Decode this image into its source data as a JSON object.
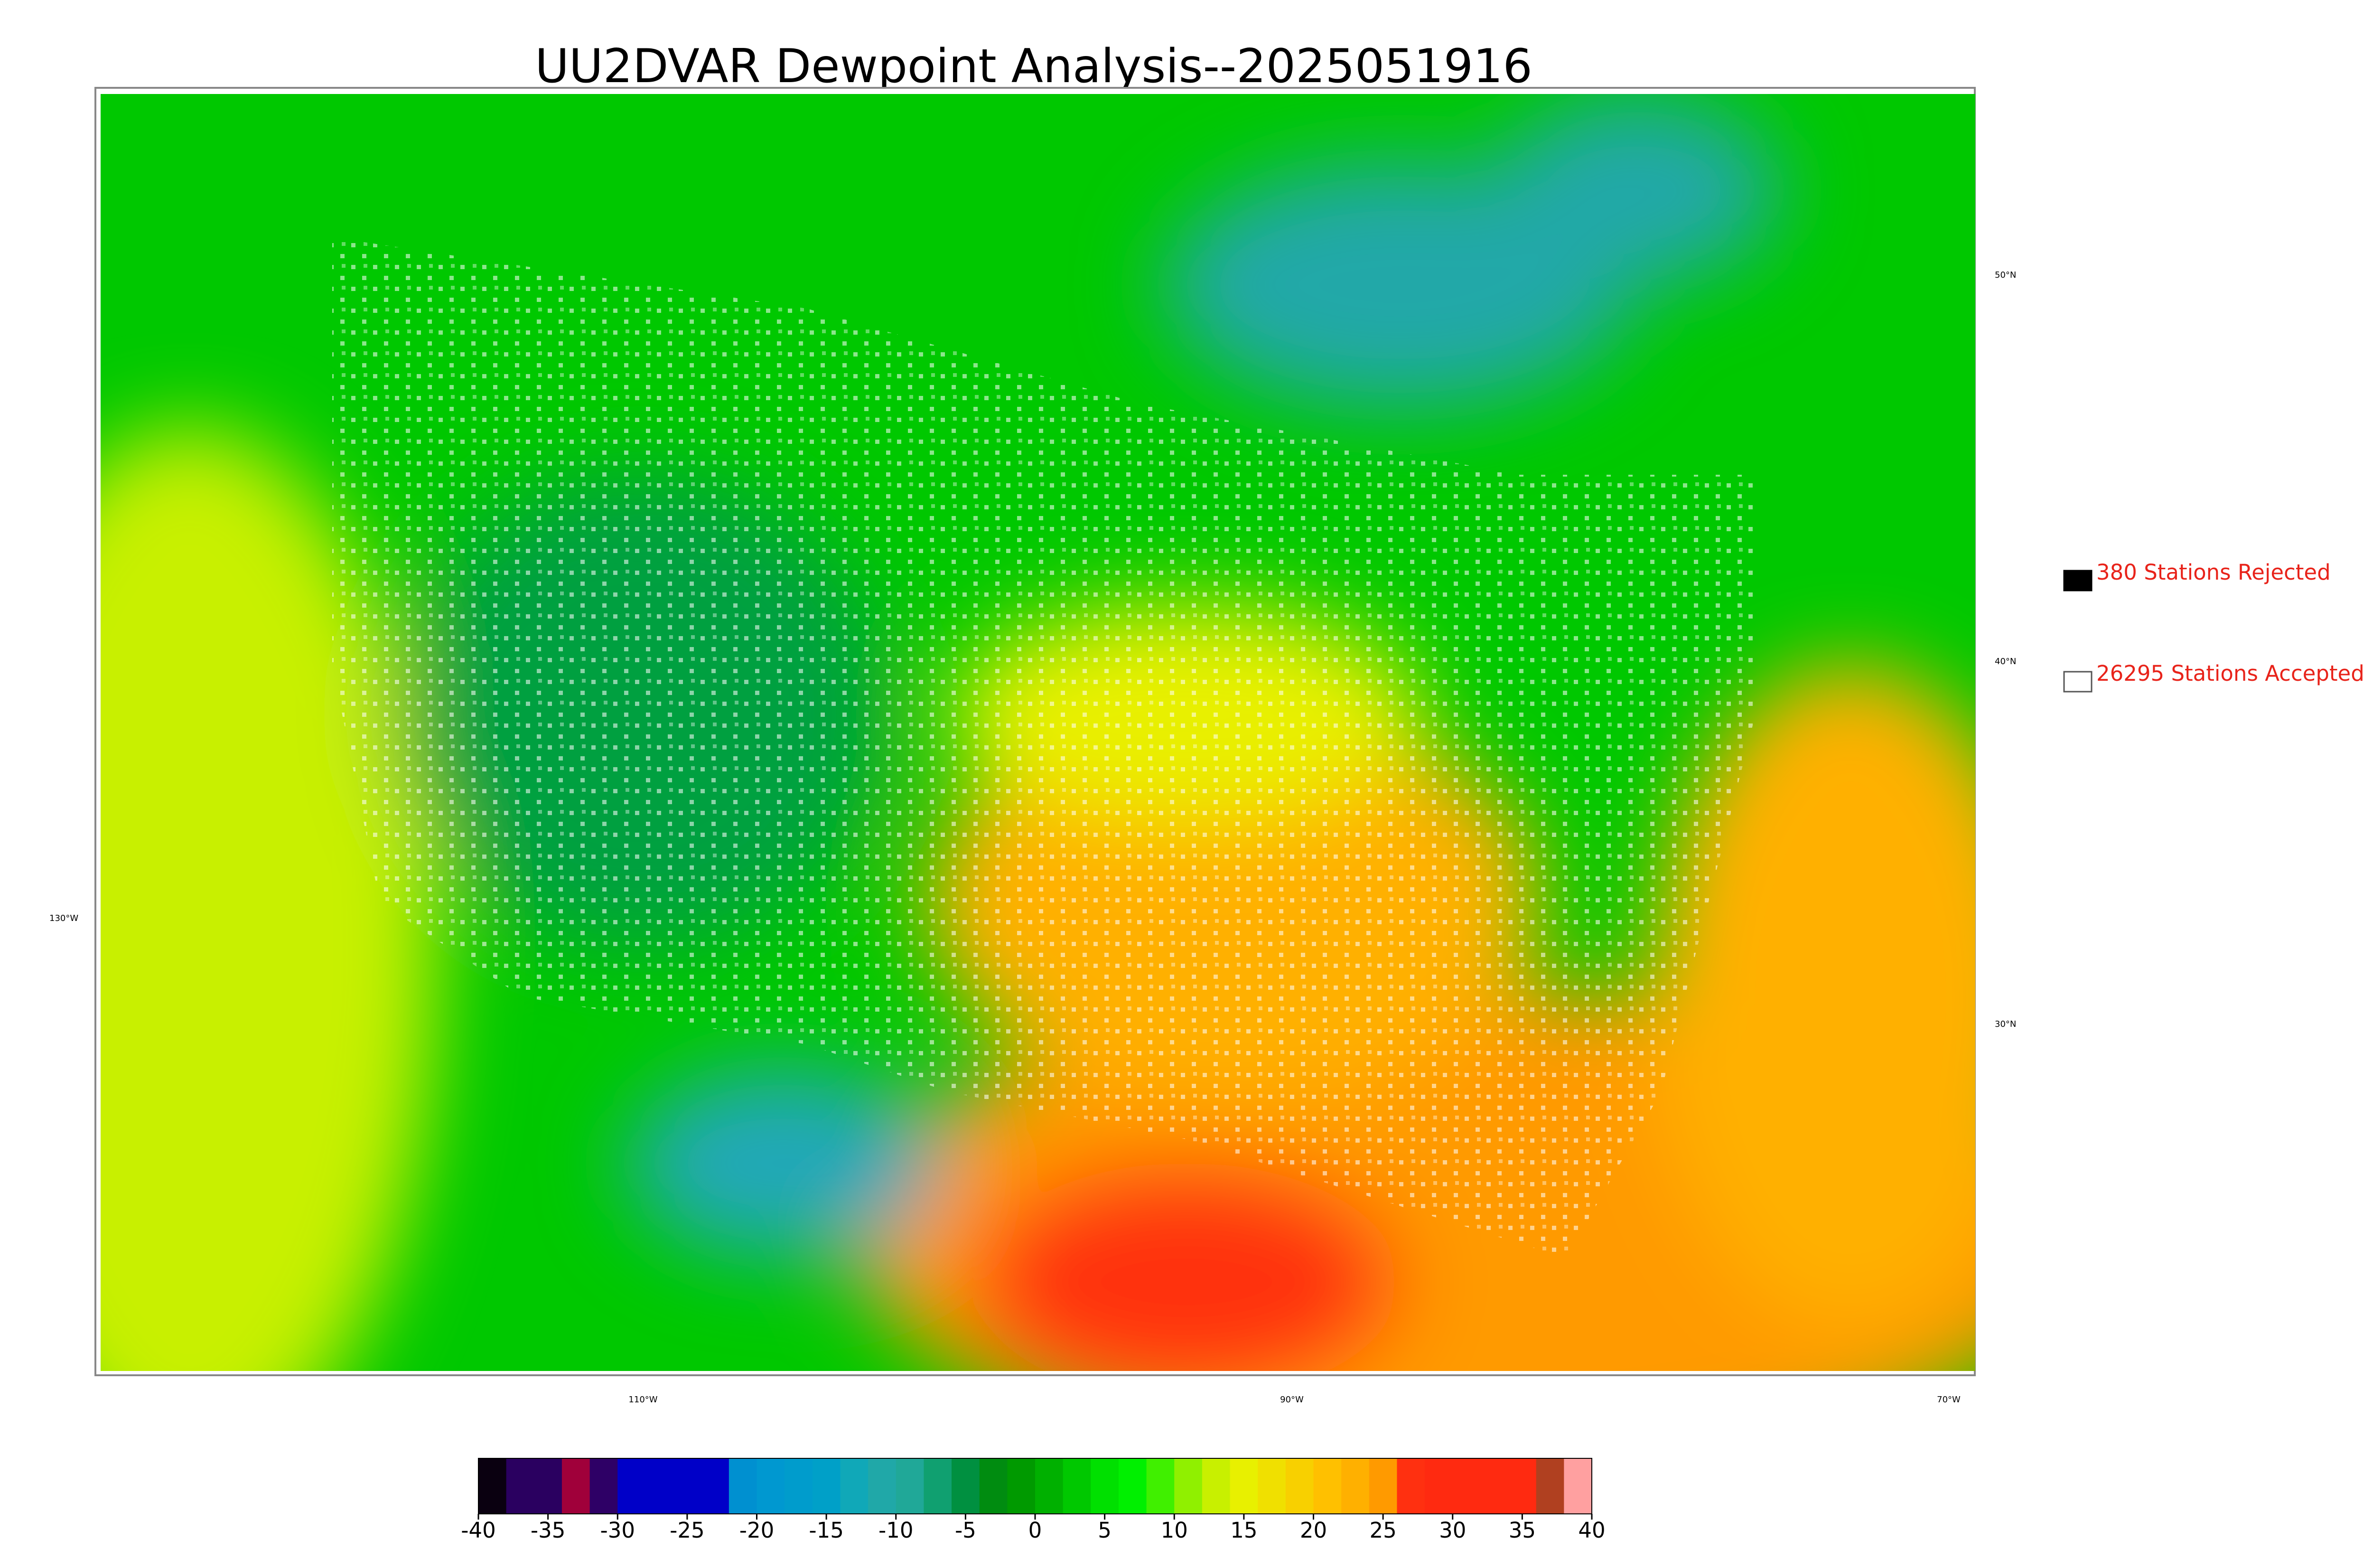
{
  "title": "UU2DVAR Dewpoint Analysis--2025051916",
  "legend": [
    {
      "label": "380 Stations Rejected",
      "color": "#000000"
    },
    {
      "label": "26295 Stations Accepted",
      "color": "#ffffff"
    }
  ],
  "graticule_labels": {
    "lat": [
      "50°N",
      "40°N",
      "30°N"
    ],
    "lon": [
      "130°W",
      "110°W",
      "90°W",
      "70°W"
    ]
  },
  "colorbar": {
    "lim": [
      -40,
      40
    ],
    "ticks": [
      -40,
      -35,
      -30,
      -25,
      -20,
      -15,
      -10,
      -5,
      0,
      5,
      10,
      15,
      20,
      25,
      30,
      35,
      40
    ],
    "colors": [
      "#0a0010",
      "#2a0060",
      "#2a0060",
      "#a0003a",
      "#2e0066",
      "#0000c8",
      "#0000c8",
      "#0000c8",
      "#0000c8",
      "#0090d0",
      "#0098d0",
      "#009ccc",
      "#00a0c8",
      "#10a8b8",
      "#20a8a8",
      "#20a898",
      "#10a070",
      "#009040",
      "#008c10",
      "#009a00",
      "#00b000",
      "#00c800",
      "#00e000",
      "#00f000",
      "#40f000",
      "#90f000",
      "#c8f000",
      "#e8f000",
      "#f0e000",
      "#f8d000",
      "#ffc000",
      "#ffb000",
      "#ff9a00",
      "#ff3010",
      "#ff2a10",
      "#ff2a10",
      "#ff2a10",
      "#ff2a10",
      "#b04020",
      "#ffa0a0"
    ]
  }
}
